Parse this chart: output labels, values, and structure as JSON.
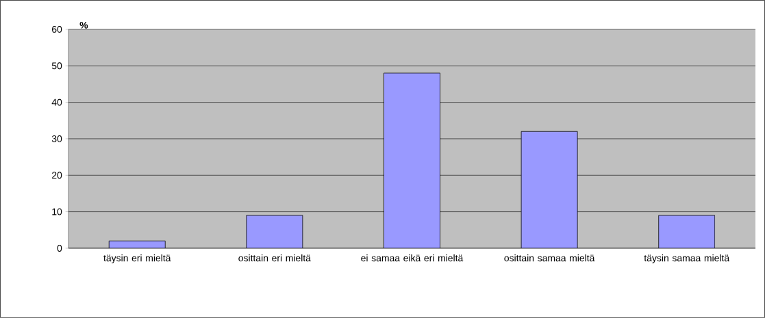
{
  "chart_data": {
    "type": "bar",
    "ylabel": "%",
    "categories": [
      "täysin eri mieltä",
      "osittain eri mieltä",
      "ei samaa eikä eri mieltä",
      "osittain samaa mieltä",
      "täysin samaa mieltä"
    ],
    "values": [
      2,
      9,
      48,
      32,
      9
    ],
    "color": "#9999ff",
    "ylim": [
      0,
      60
    ],
    "yticks": [
      0,
      10,
      20,
      30,
      40,
      50,
      60
    ],
    "grid": "y"
  }
}
